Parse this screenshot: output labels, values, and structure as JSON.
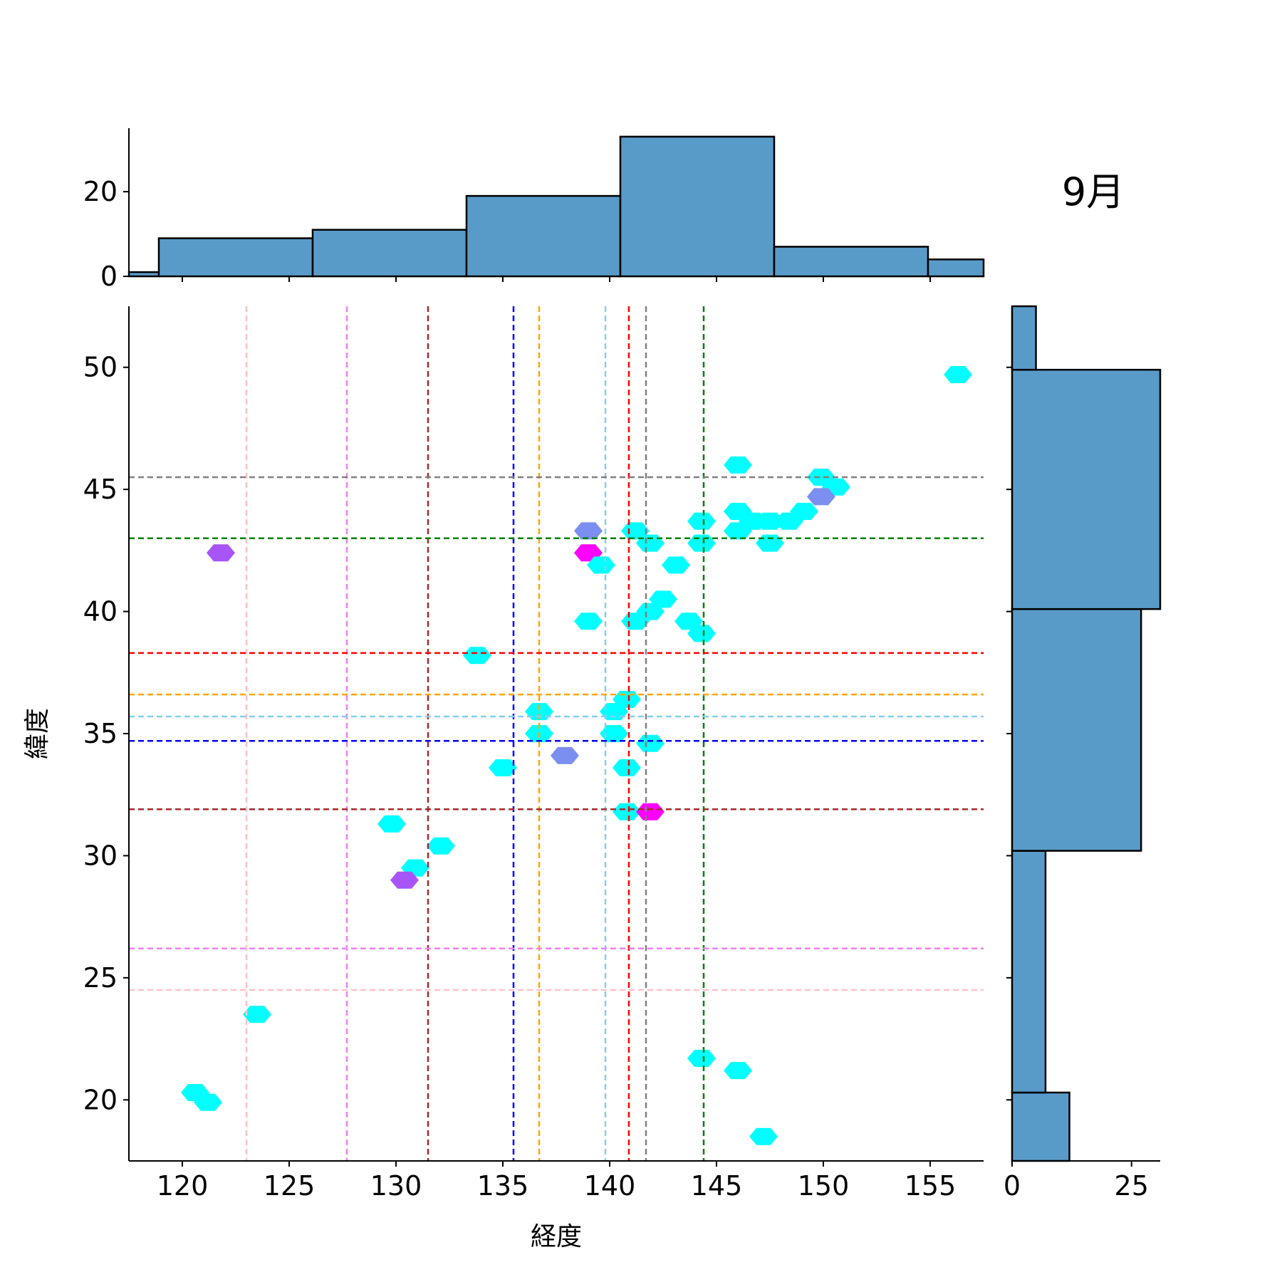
{
  "chart_data": {
    "type": "hexbin-joint",
    "title": "9月",
    "xlabel": "経度",
    "ylabel": "緯度",
    "xlim": [
      117.5,
      157.5
    ],
    "ylim": [
      17.5,
      52.5
    ],
    "x_ticks": [
      120,
      125,
      130,
      135,
      140,
      145,
      150,
      155
    ],
    "y_ticks": [
      20,
      25,
      30,
      35,
      40,
      45,
      50
    ],
    "top_hist_ticks": [
      0,
      20
    ],
    "right_hist_ticks": [
      0,
      25
    ],
    "top_hist_ylim": [
      0,
      35
    ],
    "right_hist_xlim": [
      0,
      31
    ],
    "top_histogram": [
      {
        "x0": 117.5,
        "x1": 118.9,
        "count": 1
      },
      {
        "x0": 118.9,
        "x1": 126.1,
        "count": 9
      },
      {
        "x0": 126.1,
        "x1": 133.3,
        "count": 11
      },
      {
        "x0": 133.3,
        "x1": 140.5,
        "count": 19
      },
      {
        "x0": 140.5,
        "x1": 147.7,
        "count": 33
      },
      {
        "x0": 147.7,
        "x1": 154.9,
        "count": 7
      },
      {
        "x0": 154.9,
        "x1": 157.5,
        "count": 4
      }
    ],
    "right_histogram": [
      {
        "y0": 17.5,
        "y1": 20.3,
        "count": 12
      },
      {
        "y0": 20.3,
        "y1": 30.2,
        "count": 7
      },
      {
        "y0": 30.2,
        "y1": 40.1,
        "count": 27
      },
      {
        "y0": 40.1,
        "y1": 49.9,
        "count": 31
      },
      {
        "y0": 49.9,
        "y1": 52.5,
        "count": 5
      }
    ],
    "vertical_lines": [
      {
        "x": 123.0,
        "color": "#ffc0cb"
      },
      {
        "x": 127.7,
        "color": "#ee82ee"
      },
      {
        "x": 131.5,
        "color": "#a52a2a"
      },
      {
        "x": 135.5,
        "color": "#0000ff"
      },
      {
        "x": 136.7,
        "color": "#ffa500"
      },
      {
        "x": 139.8,
        "color": "#87ceeb"
      },
      {
        "x": 140.9,
        "color": "#ff0000"
      },
      {
        "x": 141.7,
        "color": "#808080"
      },
      {
        "x": 144.4,
        "color": "#008000"
      }
    ],
    "horizontal_lines": [
      {
        "y": 45.5,
        "color": "#808080"
      },
      {
        "y": 43.0,
        "color": "#008000"
      },
      {
        "y": 38.3,
        "color": "#ff0000"
      },
      {
        "y": 36.6,
        "color": "#ffa500"
      },
      {
        "y": 35.7,
        "color": "#87ceeb"
      },
      {
        "y": 34.7,
        "color": "#0000ff"
      },
      {
        "y": 31.9,
        "color": "#a52a2a"
      },
      {
        "y": 26.2,
        "color": "#ee82ee"
      },
      {
        "y": 24.5,
        "color": "#ffc0cb"
      }
    ],
    "hex_bins": [
      {
        "x": 156.3,
        "y": 49.7,
        "color": "#00ffff"
      },
      {
        "x": 146.0,
        "y": 46.0,
        "color": "#00ffff"
      },
      {
        "x": 149.9,
        "y": 45.5,
        "color": "#00ffff"
      },
      {
        "x": 150.6,
        "y": 45.1,
        "color": "#00ffff"
      },
      {
        "x": 149.9,
        "y": 44.7,
        "color": "#7b8ff0"
      },
      {
        "x": 146.0,
        "y": 44.1,
        "color": "#00ffff"
      },
      {
        "x": 149.1,
        "y": 44.1,
        "color": "#00ffff"
      },
      {
        "x": 144.3,
        "y": 43.7,
        "color": "#00ffff"
      },
      {
        "x": 146.7,
        "y": 43.7,
        "color": "#00ffff"
      },
      {
        "x": 147.5,
        "y": 43.7,
        "color": "#00ffff"
      },
      {
        "x": 148.4,
        "y": 43.7,
        "color": "#00ffff"
      },
      {
        "x": 139.0,
        "y": 43.3,
        "color": "#7b8ff0"
      },
      {
        "x": 141.2,
        "y": 43.3,
        "color": "#00ffff"
      },
      {
        "x": 146.0,
        "y": 43.3,
        "color": "#00ffff"
      },
      {
        "x": 141.9,
        "y": 42.8,
        "color": "#00ffff"
      },
      {
        "x": 144.3,
        "y": 42.8,
        "color": "#00ffff"
      },
      {
        "x": 147.5,
        "y": 42.8,
        "color": "#00ffff"
      },
      {
        "x": 121.8,
        "y": 42.4,
        "color": "#a855f7"
      },
      {
        "x": 139.0,
        "y": 42.4,
        "color": "#ff00ff"
      },
      {
        "x": 139.6,
        "y": 41.9,
        "color": "#00ffff"
      },
      {
        "x": 143.1,
        "y": 41.9,
        "color": "#00ffff"
      },
      {
        "x": 142.5,
        "y": 40.5,
        "color": "#00ffff"
      },
      {
        "x": 141.9,
        "y": 40.0,
        "color": "#00ffff"
      },
      {
        "x": 139.0,
        "y": 39.6,
        "color": "#00ffff"
      },
      {
        "x": 141.2,
        "y": 39.6,
        "color": "#00ffff"
      },
      {
        "x": 143.7,
        "y": 39.6,
        "color": "#00ffff"
      },
      {
        "x": 144.3,
        "y": 39.1,
        "color": "#00ffff"
      },
      {
        "x": 133.8,
        "y": 38.2,
        "color": "#00ffff"
      },
      {
        "x": 140.8,
        "y": 36.4,
        "color": "#00ffff"
      },
      {
        "x": 136.7,
        "y": 35.9,
        "color": "#00ffff"
      },
      {
        "x": 140.2,
        "y": 35.9,
        "color": "#00ffff"
      },
      {
        "x": 136.7,
        "y": 35.0,
        "color": "#00ffff"
      },
      {
        "x": 140.2,
        "y": 35.0,
        "color": "#00ffff"
      },
      {
        "x": 141.9,
        "y": 34.6,
        "color": "#00ffff"
      },
      {
        "x": 137.9,
        "y": 34.1,
        "color": "#7b8ff0"
      },
      {
        "x": 135.0,
        "y": 33.6,
        "color": "#00ffff"
      },
      {
        "x": 140.8,
        "y": 33.6,
        "color": "#00ffff"
      },
      {
        "x": 140.8,
        "y": 31.8,
        "color": "#00ffff"
      },
      {
        "x": 141.9,
        "y": 31.8,
        "color": "#ff00ff"
      },
      {
        "x": 129.8,
        "y": 31.3,
        "color": "#00ffff"
      },
      {
        "x": 132.1,
        "y": 30.4,
        "color": "#00ffff"
      },
      {
        "x": 130.9,
        "y": 29.5,
        "color": "#00ffff"
      },
      {
        "x": 130.4,
        "y": 29.0,
        "color": "#a855f7"
      },
      {
        "x": 123.5,
        "y": 23.5,
        "color": "#00ffff"
      },
      {
        "x": 144.3,
        "y": 21.7,
        "color": "#00ffff"
      },
      {
        "x": 146.0,
        "y": 21.2,
        "color": "#00ffff"
      },
      {
        "x": 120.6,
        "y": 20.3,
        "color": "#00ffff"
      },
      {
        "x": 121.2,
        "y": 19.9,
        "color": "#00ffff"
      },
      {
        "x": 147.2,
        "y": 18.5,
        "color": "#00ffff"
      }
    ]
  }
}
